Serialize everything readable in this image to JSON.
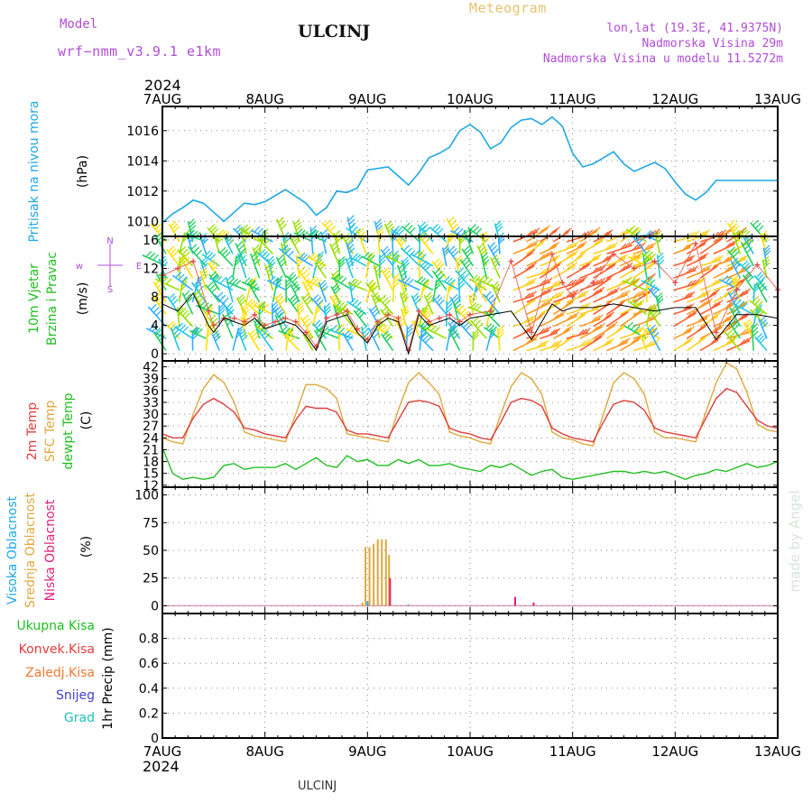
{
  "header": {
    "model_label": "Model",
    "model_name": "wrf−nmm_v3.9.1  e1km",
    "station": "ULCINJ",
    "product": "Meteogram",
    "lonlat": "lon,lat (19.3E, 41.9375N)",
    "elevation": "Nadmorska Visina 29m",
    "model_elevation": "Nadmorska Visina u modelu 11.5272m",
    "credit": "made by Angel",
    "footer_station": "ULCINJ",
    "year": "2024"
  },
  "colors": {
    "pressure": "#1ea8e6",
    "temp2m": "#e03c3c",
    "sfc_temp": "#e0a83c",
    "dewpoint": "#20c020",
    "cloud_high": "#1ea8e6",
    "cloud_mid": "#e0a83c",
    "cloud_low": "#e0207a",
    "precip_total": "#20c020",
    "precip_conv": "#e03c3c",
    "precip_frozen": "#f07830",
    "snow": "#4040d0",
    "hail": "#20c0c0",
    "header_purple": "#b04cd8",
    "header_orange": "#e8c070"
  },
  "chart_data": [
    {
      "type": "line",
      "id": "pressure",
      "ylabel": "Pritisak na nivou mora",
      "unit": "(hPa)",
      "x_categories": [
        "7AUG",
        "8AUG",
        "9AUG",
        "10AUG",
        "11AUG",
        "12AUG",
        "13AUG"
      ],
      "ylim": [
        1009,
        1017.6
      ],
      "yticks": [
        1010,
        1012,
        1014,
        1016
      ],
      "x": [
        0,
        0.1,
        0.2,
        0.3,
        0.4,
        0.5,
        0.6,
        0.7,
        0.8,
        0.9,
        1.0,
        1.2,
        1.4,
        1.5,
        1.6,
        1.7,
        1.8,
        1.9,
        2.0,
        2.2,
        2.3,
        2.4,
        2.5,
        2.6,
        2.7,
        2.8,
        2.9,
        3.0,
        3.1,
        3.2,
        3.3,
        3.4,
        3.5,
        3.6,
        3.7,
        3.8,
        3.9,
        4.0,
        4.1,
        4.2,
        4.3,
        4.4,
        4.5,
        4.6,
        4.7,
        4.8,
        4.9,
        5.0,
        5.1,
        5.2,
        5.3,
        5.4,
        5.5,
        5.6,
        5.7,
        5.8,
        5.9,
        6.0
      ],
      "series": [
        {
          "values": [
            1009.9,
            1010.5,
            1010.9,
            1011.4,
            1011.2,
            1010.6,
            1010.0,
            1010.6,
            1011.2,
            1011.1,
            1011.3,
            1012.1,
            1011.2,
            1010.4,
            1010.9,
            1012.0,
            1011.9,
            1012.2,
            1013.4,
            1013.6,
            1013.0,
            1012.4,
            1013.2,
            1014.2,
            1014.5,
            1014.9,
            1016.0,
            1016.4,
            1015.9,
            1014.8,
            1015.2,
            1016.2,
            1016.7,
            1016.8,
            1016.4,
            1016.9,
            1016.3,
            1014.5,
            1013.6,
            1013.8,
            1014.2,
            1014.6,
            1013.8,
            1013.3,
            1013.6,
            1013.9,
            1013.5,
            1012.6,
            1011.8,
            1011.4,
            1011.9,
            1012.7,
            1012.7,
            1012.7,
            1012.7,
            1012.7,
            1012.7,
            1012.7
          ]
        }
      ]
    },
    {
      "type": "line",
      "id": "wind",
      "ylabel_lines": [
        "10m Vjetar",
        "Brzina i Pravac"
      ],
      "unit": "(m/s)",
      "ylim": [
        -1,
        16.5
      ],
      "yticks": [
        0,
        4,
        8,
        12,
        16
      ],
      "compass": [
        "N",
        "w",
        "E",
        "S"
      ],
      "x": [
        0,
        0.15,
        0.3,
        0.45,
        0.5,
        0.6,
        0.7,
        0.8,
        0.9,
        1.0,
        1.1,
        1.2,
        1.3,
        1.4,
        1.5,
        1.6,
        1.7,
        1.8,
        1.9,
        2.0,
        2.1,
        2.2,
        2.3,
        2.4,
        2.5,
        2.6,
        2.7,
        2.8,
        2.9,
        3.0,
        3.2,
        3.4,
        3.6,
        3.8,
        3.9,
        4.0,
        4.2,
        4.4,
        4.6,
        4.8,
        5.0,
        5.2,
        5.4,
        5.6,
        5.8,
        6.0
      ],
      "series": [
        {
          "name": "wind speed",
          "values": [
            7.0,
            6.0,
            8.5,
            4.0,
            3.0,
            5.0,
            4.5,
            4.0,
            5.0,
            3.5,
            4.0,
            4.5,
            4.0,
            2.5,
            0.5,
            4.5,
            5.0,
            5.5,
            3.0,
            1.5,
            4.0,
            5.0,
            4.5,
            0.0,
            5.5,
            4.0,
            4.5,
            5.0,
            4.0,
            5.0,
            5.5,
            6.0,
            2.0,
            7.0,
            6.0,
            6.5,
            6.5,
            7.0,
            6.5,
            6.0,
            6.5,
            6.5,
            2.0,
            5.5,
            5.5,
            5.0
          ]
        },
        {
          "name": "gust",
          "values": [
            11.0,
            12.0,
            13.0,
            6.0,
            4.0,
            5.0,
            5.0,
            4.5,
            5.5,
            4.0,
            4.5,
            5.0,
            4.5,
            3.0,
            1.0,
            5.0,
            5.5,
            6.0,
            3.5,
            2.0,
            4.5,
            5.5,
            5.0,
            0.5,
            6.0,
            4.5,
            5.0,
            5.5,
            4.5,
            5.5,
            6.0,
            13.0,
            3.0,
            14.0,
            10.0,
            8.0,
            10.0,
            14.0,
            12.0,
            13.0,
            10.0,
            15.5,
            3.0,
            9.0,
            12.5,
            9.0
          ]
        }
      ]
    },
    {
      "type": "line",
      "id": "temperature",
      "ylabel_lines": [
        "2m Temp",
        "SFC Temp",
        "dewpt Temp"
      ],
      "unit": "(C)",
      "ylim": [
        11.5,
        43.5
      ],
      "yticks": [
        12,
        15,
        18,
        21,
        24,
        27,
        30,
        33,
        36,
        39,
        42
      ],
      "x": [
        0,
        0.1,
        0.2,
        0.3,
        0.4,
        0.5,
        0.6,
        0.7,
        0.8,
        0.9,
        1.0,
        1.1,
        1.2,
        1.3,
        1.4,
        1.5,
        1.6,
        1.7,
        1.8,
        1.9,
        2.0,
        2.1,
        2.2,
        2.3,
        2.4,
        2.5,
        2.6,
        2.7,
        2.8,
        2.9,
        3.0,
        3.1,
        3.2,
        3.3,
        3.4,
        3.5,
        3.6,
        3.7,
        3.8,
        3.9,
        4.0,
        4.1,
        4.2,
        4.3,
        4.4,
        4.5,
        4.6,
        4.7,
        4.8,
        4.9,
        5.0,
        5.1,
        5.2,
        5.3,
        5.4,
        5.5,
        5.6,
        5.7,
        5.8,
        5.9,
        6.0
      ],
      "series": [
        {
          "name": "2m Temp",
          "values": [
            25.0,
            24.0,
            24.0,
            29.0,
            32.5,
            34.0,
            32.5,
            30.5,
            26.5,
            26.0,
            25.0,
            24.5,
            24.0,
            28.5,
            32.0,
            31.5,
            31.5,
            30.5,
            26.0,
            25.0,
            25.0,
            24.5,
            24.0,
            28.5,
            33.0,
            33.5,
            33.0,
            32.0,
            26.5,
            25.5,
            25.0,
            24.0,
            23.5,
            28.0,
            33.0,
            34.0,
            33.5,
            32.0,
            26.5,
            25.0,
            24.0,
            23.5,
            23.0,
            28.0,
            32.5,
            33.5,
            33.0,
            31.0,
            26.5,
            25.5,
            25.0,
            24.5,
            24.0,
            29.0,
            34.0,
            36.5,
            35.5,
            32.0,
            28.5,
            27.0,
            26.5
          ]
        },
        {
          "name": "SFC Temp",
          "values": [
            24.0,
            23.0,
            22.5,
            30.0,
            36.5,
            40.0,
            38.0,
            33.0,
            25.5,
            24.5,
            24.0,
            23.5,
            23.0,
            30.0,
            37.5,
            37.5,
            36.5,
            34.0,
            25.0,
            24.5,
            24.0,
            23.5,
            23.0,
            31.0,
            38.0,
            40.5,
            38.0,
            35.0,
            25.5,
            24.5,
            24.0,
            23.0,
            22.5,
            30.0,
            37.0,
            40.5,
            39.0,
            35.0,
            25.5,
            24.0,
            23.5,
            22.5,
            22.0,
            30.0,
            38.0,
            40.5,
            39.0,
            35.0,
            25.5,
            24.0,
            24.0,
            23.5,
            23.0,
            30.5,
            38.0,
            43.0,
            41.5,
            35.5,
            27.5,
            26.0,
            25.5
          ]
        },
        {
          "name": "dewpt Temp",
          "values": [
            21.5,
            15.0,
            13.5,
            14.0,
            13.5,
            14.0,
            17.0,
            17.5,
            16.0,
            16.5,
            16.5,
            16.5,
            17.5,
            16.0,
            17.5,
            19.0,
            17.0,
            16.5,
            19.5,
            18.0,
            18.5,
            17.0,
            17.0,
            18.5,
            17.5,
            18.5,
            17.0,
            17.0,
            17.5,
            16.5,
            16.0,
            15.5,
            17.0,
            16.5,
            17.5,
            16.0,
            14.5,
            15.5,
            16.0,
            14.0,
            13.5,
            14.0,
            14.5,
            15.0,
            15.5,
            15.5,
            15.0,
            15.5,
            15.0,
            15.5,
            14.5,
            13.5,
            14.5,
            15.0,
            16.0,
            15.5,
            16.5,
            17.5,
            16.5,
            17.0,
            18.0
          ]
        }
      ]
    },
    {
      "type": "bar",
      "id": "cloud",
      "ylabel_lines": [
        "Visoka Oblacnost",
        "Srednja Oblacnost",
        "Niska Oblacnost"
      ],
      "unit": "(%)",
      "ylim": [
        -7,
        107
      ],
      "yticks": [
        0,
        25,
        50,
        75,
        100
      ],
      "series": [
        {
          "name": "Srednja Oblacnost",
          "points": [
            [
              1.95,
              3
            ],
            [
              1.98,
              53
            ],
            [
              2.02,
              53
            ],
            [
              2.06,
              56
            ],
            [
              2.1,
              60
            ],
            [
              2.14,
              60
            ],
            [
              2.18,
              60
            ],
            [
              2.21,
              46
            ]
          ]
        },
        {
          "name": "Niska Oblacnost",
          "points": [
            [
              2.22,
              25
            ],
            [
              3.44,
              8
            ],
            [
              3.62,
              3
            ]
          ]
        },
        {
          "name": "Visoka Oblacnost",
          "points": [
            [
              2.0,
              4
            ],
            [
              2.4,
              1
            ]
          ]
        }
      ]
    },
    {
      "type": "bar",
      "id": "precip",
      "ylabel": "1hr Precip (mm)",
      "legend": [
        "Ukupna Kisa",
        "Konvek.Kisa",
        "Zaledj.Kisa",
        "Snijeg",
        "Grad"
      ],
      "ylim": [
        0,
        1.0
      ],
      "yticks": [
        0,
        0.2,
        0.4,
        0.6,
        0.8
      ],
      "ytick_labels": [
        "0",
        "0.2",
        "0.4",
        "0.6",
        "0.8"
      ],
      "series": []
    }
  ]
}
